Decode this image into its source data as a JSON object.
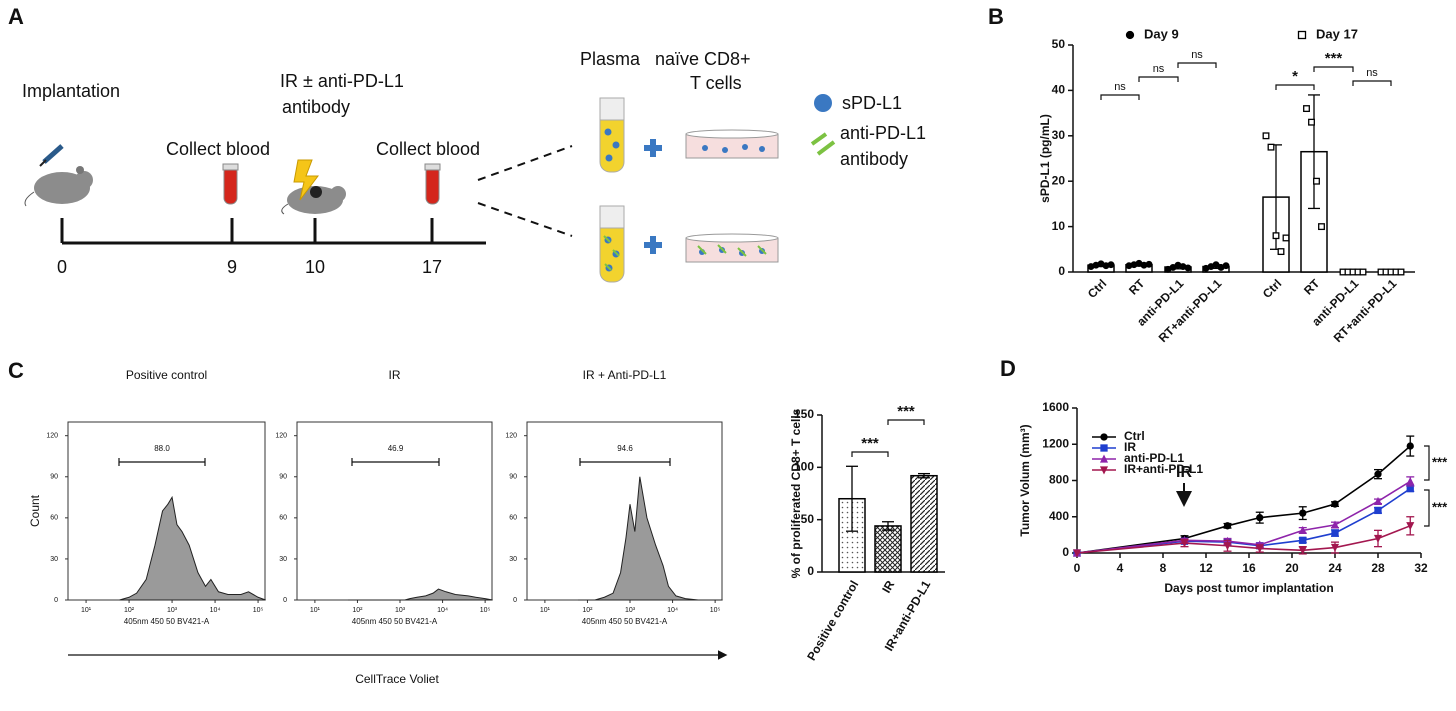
{
  "panels": [
    "A",
    "B",
    "C",
    "D"
  ],
  "diagram": {
    "implantation": "Implantation",
    "treatment": [
      "IR ± anti-PD-L1",
      "antibody"
    ],
    "collect_blood": [
      "Collect blood",
      "Collect blood"
    ],
    "timeline": [
      0,
      9,
      10,
      17
    ],
    "plasma": "Plasma",
    "cells": [
      "naïve CD8+",
      "T cells"
    ],
    "legend_spdl1": "sPD-L1",
    "legend_antibody": [
      "anti-PD-L1",
      "antibody"
    ]
  },
  "flow_axis_caption": "CellTrace Voliet",
  "chart_data": [
    {
      "type": "bar",
      "y_label": "sPD-L1 (pg/mL)",
      "ylim": [
        0,
        50
      ],
      "yticks": [
        0,
        10,
        20,
        30,
        40,
        50
      ],
      "series": [
        {
          "name": "Day 9",
          "marker": "filled-circle",
          "fill": "#ffffff",
          "color": "#000000",
          "categories": [
            "Ctrl",
            "RT",
            "anti-PD-L1",
            "RT+anti-PD-L1"
          ],
          "values": [
            1.5,
            1.6,
            1.1,
            1.2
          ],
          "errors": [
            0.3,
            0.3,
            0.4,
            0.4
          ],
          "points": [
            [
              1.2,
              1.5,
              1.8,
              1.4,
              1.6
            ],
            [
              1.4,
              1.6,
              1.9,
              1.5,
              1.7
            ],
            [
              0.6,
              1.0,
              1.5,
              1.2,
              0.9
            ],
            [
              0.8,
              1.2,
              1.6,
              1.0,
              1.4
            ]
          ]
        },
        {
          "name": "Day 17",
          "marker": "open-square",
          "fill": "#ffffff",
          "color": "#000000",
          "categories": [
            "Ctrl",
            "RT",
            "anti-PD-L1",
            "RT+anti-PD-L1"
          ],
          "values": [
            16.5,
            26.5,
            0,
            0
          ],
          "errors": [
            11.5,
            12.5,
            0,
            0
          ],
          "points": [
            [
              30,
              27.5,
              8,
              4.5,
              7.5
            ],
            [
              36,
              33,
              20,
              10
            ],
            [
              0,
              0,
              0,
              0,
              0
            ],
            [
              0,
              0,
              0,
              0,
              0
            ]
          ]
        }
      ],
      "annotations": [
        "ns",
        "ns",
        "ns",
        "*",
        "***",
        "ns"
      ]
    },
    {
      "type": "area",
      "title": "Positive control",
      "y_label": "Count",
      "x_label": "405nm 450 50 BV421-A",
      "gate": {
        "value": 88,
        "label": "88.0"
      },
      "log_x": true,
      "xlim": [
        3.8,
        145000
      ],
      "xticks": [
        {
          "value": 10,
          "label": "10¹"
        },
        {
          "value": 100,
          "label": "10²"
        },
        {
          "value": 1000,
          "label": "10³"
        },
        {
          "value": 10000,
          "label": "10⁴"
        },
        {
          "value": 100000,
          "label": "10⁵"
        }
      ],
      "ylim": [
        0,
        130
      ],
      "yticks": [
        0,
        30,
        60,
        90,
        120
      ],
      "color": "#9a9a9a",
      "x": [
        60,
        100,
        150,
        250,
        400,
        600,
        800,
        1000,
        1300,
        1700,
        2500,
        4000,
        6000,
        8000,
        12000,
        20000,
        40000,
        60000,
        100000,
        150000
      ],
      "values": [
        0,
        2,
        5,
        15,
        40,
        65,
        70,
        75,
        55,
        50,
        40,
        20,
        10,
        15,
        6,
        4,
        4,
        6,
        2,
        0
      ]
    },
    {
      "type": "area",
      "title": "IR",
      "x_label": "405nm 450 50 BV421-A",
      "gate": {
        "value": 46.9,
        "label": "46.9"
      },
      "log_x": true,
      "xlim": [
        3.8,
        145000
      ],
      "xticks": [
        {
          "value": 10,
          "label": "10¹"
        },
        {
          "value": 100,
          "label": "10²"
        },
        {
          "value": 1000,
          "label": "10³"
        },
        {
          "value": 10000,
          "label": "10⁴"
        },
        {
          "value": 100000,
          "label": "10⁵"
        }
      ],
      "ylim": [
        0,
        130
      ],
      "yticks": [
        0,
        30,
        60,
        90,
        120
      ],
      "color": "#9a9a9a",
      "x": [
        60,
        100,
        150,
        250,
        400,
        600,
        800,
        1000,
        1300,
        1700,
        2500,
        4000,
        6000,
        8000,
        12000,
        20000,
        40000,
        60000,
        100000,
        150000
      ],
      "values": [
        0,
        0,
        0,
        0,
        0,
        0,
        0,
        0,
        0,
        1,
        2,
        3,
        5,
        8,
        6,
        4,
        3,
        2,
        1,
        0
      ]
    },
    {
      "type": "area",
      "title": "IR + Anti-PD-L1",
      "x_label": "405nm 450 50 BV421-A",
      "gate": {
        "value": 94.6,
        "label": "94.6"
      },
      "log_x": true,
      "xlim": [
        3.8,
        145000
      ],
      "xticks": [
        {
          "value": 10,
          "label": "10¹"
        },
        {
          "value": 100,
          "label": "10²"
        },
        {
          "value": 1000,
          "label": "10³"
        },
        {
          "value": 10000,
          "label": "10⁴"
        },
        {
          "value": 100000,
          "label": "10⁵"
        }
      ],
      "ylim": [
        0,
        130
      ],
      "yticks": [
        0,
        30,
        60,
        90,
        120
      ],
      "color": "#9a9a9a",
      "x": [
        60,
        100,
        150,
        250,
        400,
        600,
        800,
        1000,
        1300,
        1700,
        2500,
        4000,
        6000,
        8000,
        12000,
        20000,
        40000,
        60000,
        100000,
        150000
      ],
      "values": [
        0,
        0,
        0,
        2,
        5,
        20,
        45,
        70,
        50,
        90,
        60,
        40,
        25,
        10,
        3,
        1,
        0,
        0,
        0,
        0
      ]
    },
    {
      "type": "bar",
      "y_label": "% of proliferated CD8+ T cells",
      "ylim": [
        0,
        150
      ],
      "yticks": [
        0,
        50,
        100,
        150
      ],
      "categories": [
        "Positive control",
        "IR",
        "IR+anti-PD-L1"
      ],
      "values": [
        70,
        44,
        92
      ],
      "errors": [
        31,
        4,
        2
      ],
      "patterns": [
        "dots",
        "crosshatch",
        "diagonal"
      ],
      "color": "#000000",
      "annotations": [
        "***",
        "***"
      ]
    },
    {
      "type": "line",
      "x_label": "Days post tumor implantation",
      "y_label": "Tumor Volum (mm³)",
      "xlim": [
        0,
        32
      ],
      "xticks": [
        0,
        4,
        8,
        12,
        16,
        20,
        24,
        28,
        32
      ],
      "ylim": [
        0,
        1600
      ],
      "yticks": [
        0,
        400,
        800,
        1200,
        1600
      ],
      "x": [
        0,
        10,
        14,
        17,
        21,
        24,
        28,
        31
      ],
      "series": [
        {
          "name": "Ctrl",
          "color": "#000000",
          "marker": "circle",
          "values": [
            0,
            160,
            300,
            390,
            440,
            540,
            870,
            1180
          ],
          "errors": [
            0,
            30,
            25,
            60,
            70,
            25,
            50,
            110
          ]
        },
        {
          "name": "IR",
          "color": "#1f3fcf",
          "marker": "square",
          "values": [
            0,
            130,
            120,
            80,
            140,
            220,
            470,
            710
          ],
          "errors": [
            0,
            20,
            30,
            20,
            25,
            35,
            30,
            30
          ]
        },
        {
          "name": "anti-PD-L1",
          "color": "#8e24aa",
          "marker": "triangle-up",
          "values": [
            0,
            140,
            130,
            90,
            250,
            310,
            570,
            790
          ],
          "errors": [
            0,
            20,
            30,
            20,
            30,
            30,
            25,
            50
          ]
        },
        {
          "name": "IR+anti-PD-L1",
          "color": "#a3174f",
          "marker": "triangle-down",
          "values": [
            0,
            110,
            80,
            50,
            30,
            60,
            160,
            300
          ],
          "errors": [
            0,
            40,
            60,
            40,
            40,
            60,
            90,
            100
          ]
        }
      ],
      "annotations": [
        "IR",
        "***",
        "***"
      ]
    }
  ]
}
